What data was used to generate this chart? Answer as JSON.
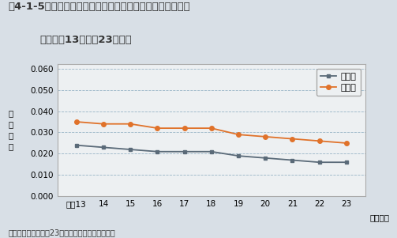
{
  "years": [
    13,
    14,
    15,
    16,
    17,
    18,
    19,
    20,
    21,
    22,
    23
  ],
  "ippan": [
    0.024,
    0.023,
    0.022,
    0.021,
    0.021,
    0.021,
    0.019,
    0.018,
    0.017,
    0.016,
    0.016
  ],
  "jihai": [
    0.035,
    0.034,
    0.034,
    0.032,
    0.032,
    0.032,
    0.029,
    0.028,
    0.027,
    0.026,
    0.025
  ],
  "ippan_color": "#5a6a78",
  "jihai_color": "#e0722a",
  "bg_color": "#d8dfe6",
  "plot_bg_color": "#edf0f2",
  "title_line1": "围4-1-5　対策地域における二酸化窒素濃度の年平均値の推",
  "title_line2": "移（平成13年度～23年度）",
  "ylabel": "年\n平\n均\n値",
  "xlabel_suffix": "（年度）",
  "legend_ippan": "一般局",
  "legend_jihai": "自排局",
  "footnote": "資料：環境省「平成23年度大気汚染状況報告書」",
  "ylim": [
    0.0,
    0.062
  ],
  "yticks": [
    0.0,
    0.01,
    0.02,
    0.03,
    0.04,
    0.05,
    0.06
  ],
  "grid_color": "#8aabbf",
  "title_fontsize": 9.5,
  "axis_fontsize": 7.5,
  "legend_fontsize": 8,
  "footnote_fontsize": 7
}
